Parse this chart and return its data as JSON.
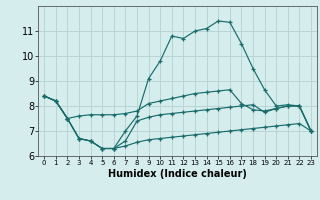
{
  "xlabel": "Humidex (Indice chaleur)",
  "x": [
    0,
    1,
    2,
    3,
    4,
    5,
    6,
    7,
    8,
    9,
    10,
    11,
    12,
    13,
    14,
    15,
    16,
    17,
    18,
    19,
    20,
    21,
    22,
    23
  ],
  "line1": [
    8.4,
    8.2,
    7.5,
    6.7,
    6.6,
    6.3,
    6.3,
    7.0,
    7.6,
    9.1,
    9.8,
    10.8,
    10.7,
    11.0,
    11.1,
    11.4,
    11.35,
    10.5,
    9.5,
    8.65,
    8.0,
    8.05,
    8.0,
    7.0
  ],
  "line2": [
    8.4,
    8.2,
    7.5,
    7.6,
    7.65,
    7.65,
    7.65,
    7.7,
    7.8,
    8.1,
    8.2,
    8.3,
    8.4,
    8.5,
    8.55,
    8.6,
    8.65,
    8.1,
    7.85,
    7.8,
    7.9,
    8.0,
    8.0,
    7.0
  ],
  "line3": [
    8.4,
    8.2,
    7.5,
    6.7,
    6.6,
    6.3,
    6.3,
    6.6,
    7.4,
    7.55,
    7.65,
    7.7,
    7.75,
    7.8,
    7.85,
    7.9,
    7.95,
    8.0,
    8.05,
    7.75,
    7.9,
    8.0,
    8.0,
    7.0
  ],
  "line4": [
    8.4,
    8.2,
    7.5,
    6.7,
    6.6,
    6.3,
    6.3,
    6.4,
    6.55,
    6.65,
    6.7,
    6.75,
    6.8,
    6.85,
    6.9,
    6.95,
    7.0,
    7.05,
    7.1,
    7.15,
    7.2,
    7.25,
    7.3,
    7.0
  ],
  "color": "#1a6b6b",
  "bg_color": "#d5eded",
  "grid_color": "#b8d4d4",
  "ylim": [
    6,
    12
  ],
  "xlim_min": -0.5,
  "xlim_max": 23.5,
  "yticks": [
    6,
    7,
    8,
    9,
    10,
    11
  ],
  "xticks": [
    0,
    1,
    2,
    3,
    4,
    5,
    6,
    7,
    8,
    9,
    10,
    11,
    12,
    13,
    14,
    15,
    16,
    17,
    18,
    19,
    20,
    21,
    22,
    23
  ],
  "xlabel_fontsize": 7,
  "ytick_fontsize": 7,
  "xtick_fontsize": 5
}
